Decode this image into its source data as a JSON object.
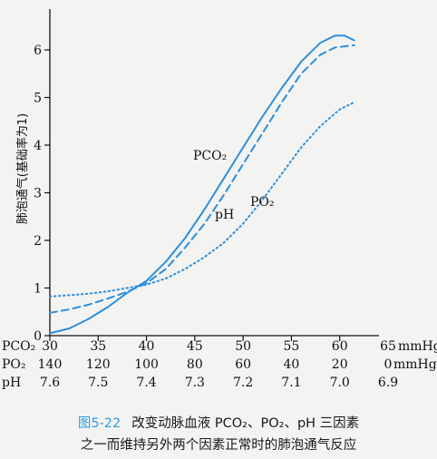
{
  "chart_data": {
    "type": "line",
    "ylabel": "肺泡通气(基础率为1)",
    "ylim": [
      0,
      6.6
    ],
    "yticks": [
      0,
      1,
      2,
      3,
      4,
      5,
      6
    ],
    "x_axes": [
      {
        "name": "PCO₂",
        "values": [
          "30",
          "35",
          "40",
          "45",
          "50",
          "55",
          "60",
          "65"
        ],
        "unit": "mmHg"
      },
      {
        "name": "PO₂",
        "values": [
          "140",
          "120",
          "100",
          "80",
          "60",
          "40",
          "20",
          "0"
        ],
        "unit": "mmHg"
      },
      {
        "name": "pH",
        "values": [
          "7.6",
          "7.5",
          "7.4",
          "7.3",
          "7.2",
          "7.1",
          "7.0",
          "6.9"
        ],
        "unit": ""
      }
    ],
    "x_positions": [
      30,
      35,
      40,
      45,
      50,
      55,
      60,
      65
    ],
    "series": [
      {
        "name": "PCO₂",
        "style": "solid",
        "color": "#2d8fd8",
        "points": [
          [
            30,
            0.05
          ],
          [
            32,
            0.15
          ],
          [
            34,
            0.35
          ],
          [
            36,
            0.6
          ],
          [
            38,
            0.9
          ],
          [
            40,
            1.15
          ],
          [
            42,
            1.55
          ],
          [
            44,
            2.05
          ],
          [
            46,
            2.65
          ],
          [
            48,
            3.3
          ],
          [
            50,
            3.95
          ],
          [
            52,
            4.6
          ],
          [
            54,
            5.2
          ],
          [
            56,
            5.75
          ],
          [
            58,
            6.15
          ],
          [
            59.5,
            6.3
          ],
          [
            60.5,
            6.3
          ],
          [
            61.5,
            6.2
          ]
        ]
      },
      {
        "name": "pH",
        "style": "dashed",
        "color": "#2d8fd8",
        "points": [
          [
            30,
            0.48
          ],
          [
            32,
            0.55
          ],
          [
            34,
            0.65
          ],
          [
            36,
            0.78
          ],
          [
            38,
            0.92
          ],
          [
            40,
            1.1
          ],
          [
            42,
            1.4
          ],
          [
            44,
            1.85
          ],
          [
            46,
            2.35
          ],
          [
            48,
            2.95
          ],
          [
            50,
            3.6
          ],
          [
            52,
            4.25
          ],
          [
            54,
            4.9
          ],
          [
            56,
            5.5
          ],
          [
            58,
            5.9
          ],
          [
            59.5,
            6.05
          ],
          [
            61.5,
            6.1
          ]
        ]
      },
      {
        "name": "PO₂",
        "style": "dotted",
        "color": "#2d8fd8",
        "points": [
          [
            30,
            0.82
          ],
          [
            32,
            0.85
          ],
          [
            34,
            0.88
          ],
          [
            36,
            0.93
          ],
          [
            38,
            1.0
          ],
          [
            40,
            1.07
          ],
          [
            42,
            1.2
          ],
          [
            44,
            1.4
          ],
          [
            46,
            1.65
          ],
          [
            48,
            1.95
          ],
          [
            50,
            2.35
          ],
          [
            52,
            2.85
          ],
          [
            54,
            3.4
          ],
          [
            56,
            3.95
          ],
          [
            58,
            4.4
          ],
          [
            60,
            4.75
          ],
          [
            61.5,
            4.9
          ]
        ]
      }
    ]
  },
  "caption": {
    "figure": "图5-22",
    "line1": "改变动脉血液 PCO₂、PO₂、pH 三因素",
    "line2": "之一而维持另外两个因素正常时的肺泡通气反应"
  }
}
